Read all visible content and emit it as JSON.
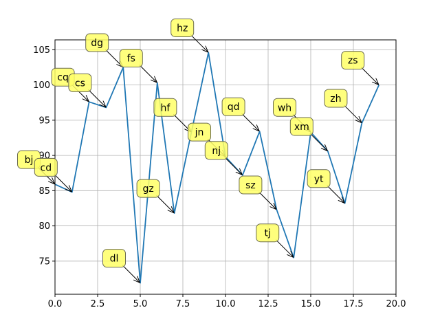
{
  "chart_data": {
    "type": "line",
    "title": "",
    "xlabel": "",
    "ylabel": "",
    "xlim": [
      0,
      20
    ],
    "ylim": [
      70.3,
      106.4
    ],
    "grid": true,
    "line_color": "#1f77b4",
    "annotation_color": "#ffff66",
    "x_ticks": [
      0,
      2.5,
      5,
      7.5,
      10,
      12.5,
      15,
      17.5,
      20
    ],
    "x_tick_labels": [
      "0.0",
      "2.5",
      "5.0",
      "7.5",
      "10.0",
      "12.5",
      "15.0",
      "17.5",
      "20.0"
    ],
    "y_ticks": [
      75,
      80,
      85,
      90,
      95,
      100,
      105
    ],
    "y_tick_labels": [
      "75",
      "80",
      "85",
      "90",
      "95",
      "100",
      "105"
    ],
    "x": [
      0,
      1,
      2,
      3,
      4,
      5,
      6,
      7,
      8,
      9,
      10,
      11,
      12,
      13,
      14,
      15,
      16,
      17,
      18,
      19
    ],
    "y": [
      85.9,
      84.8,
      97.6,
      96.8,
      102.5,
      71.9,
      100.3,
      81.8,
      93.3,
      104.6,
      89.8,
      87.2,
      93.4,
      82.3,
      75.5,
      93.3,
      90.6,
      83.2,
      94.6,
      100.0
    ],
    "annotations": [
      {
        "label": "bj",
        "x": 0,
        "y": 85.9
      },
      {
        "label": "cd",
        "x": 1,
        "y": 84.8
      },
      {
        "label": "cq",
        "x": 2,
        "y": 97.6
      },
      {
        "label": "cs",
        "x": 3,
        "y": 96.8
      },
      {
        "label": "dg",
        "x": 4,
        "y": 102.5
      },
      {
        "label": "dl",
        "x": 5,
        "y": 71.9
      },
      {
        "label": "fs",
        "x": 6,
        "y": 100.3
      },
      {
        "label": "gz",
        "x": 7,
        "y": 81.8
      },
      {
        "label": "hf",
        "x": 8,
        "y": 93.3
      },
      {
        "label": "hz",
        "x": 9,
        "y": 104.6
      },
      {
        "label": "jn",
        "x": 10,
        "y": 89.8
      },
      {
        "label": "nj",
        "x": 11,
        "y": 87.2
      },
      {
        "label": "qd",
        "x": 12,
        "y": 93.4
      },
      {
        "label": "sz",
        "x": 13,
        "y": 82.3
      },
      {
        "label": "tj",
        "x": 14,
        "y": 75.5
      },
      {
        "label": "wh",
        "x": 15,
        "y": 93.3
      },
      {
        "label": "xm",
        "x": 16,
        "y": 90.6
      },
      {
        "label": "yt",
        "x": 17,
        "y": 83.2
      },
      {
        "label": "zh",
        "x": 18,
        "y": 94.6
      },
      {
        "label": "zs",
        "x": 19,
        "y": 100.0
      }
    ]
  }
}
